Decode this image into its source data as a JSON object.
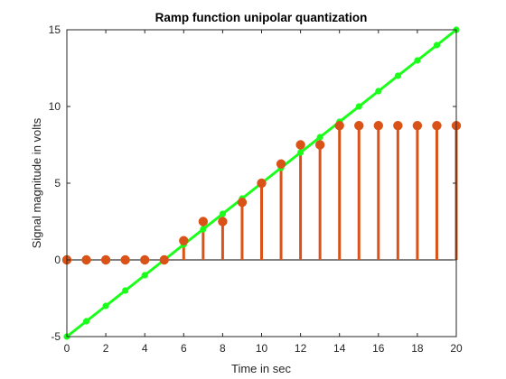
{
  "chart_data": {
    "type": "line",
    "title": "Ramp function unipolar quantization",
    "xlabel": "Time in sec",
    "ylabel": "Signal magnitude in volts",
    "xlim": [
      0,
      20
    ],
    "ylim": [
      -5,
      15
    ],
    "xticks": [
      "0",
      "2",
      "4",
      "6",
      "8",
      "10",
      "12",
      "14",
      "16",
      "18",
      "20"
    ],
    "yticks": [
      "-5",
      "0",
      "5",
      "10",
      "15"
    ],
    "grid": false,
    "legend": "none",
    "colors": {
      "ramp": "#19ff19",
      "quantized": "#d95319",
      "axes": "#262626",
      "baseline": "#000000"
    },
    "series": [
      {
        "kind": "line",
        "x": [
          0,
          1,
          2,
          3,
          4,
          5,
          6,
          7,
          8,
          9,
          10,
          11,
          12,
          13,
          14,
          15,
          16,
          17,
          18,
          19,
          20
        ],
        "y": [
          -5,
          -4,
          -3,
          -2,
          -1,
          0,
          1,
          2,
          3,
          4,
          5,
          6,
          7,
          8,
          9,
          10,
          11,
          12,
          13,
          14,
          15
        ]
      },
      {
        "kind": "stem",
        "x": [
          0,
          1,
          2,
          3,
          4,
          5,
          6,
          7,
          8,
          9,
          10,
          11,
          12,
          13,
          14,
          15,
          16,
          17,
          18,
          19,
          20
        ],
        "y": [
          0,
          0,
          0,
          0,
          0,
          0,
          1.25,
          2.5,
          2.5,
          3.75,
          5,
          6.25,
          7.5,
          7.5,
          8.75,
          8.75,
          8.75,
          8.75,
          8.75,
          8.75,
          8.75
        ]
      }
    ]
  }
}
